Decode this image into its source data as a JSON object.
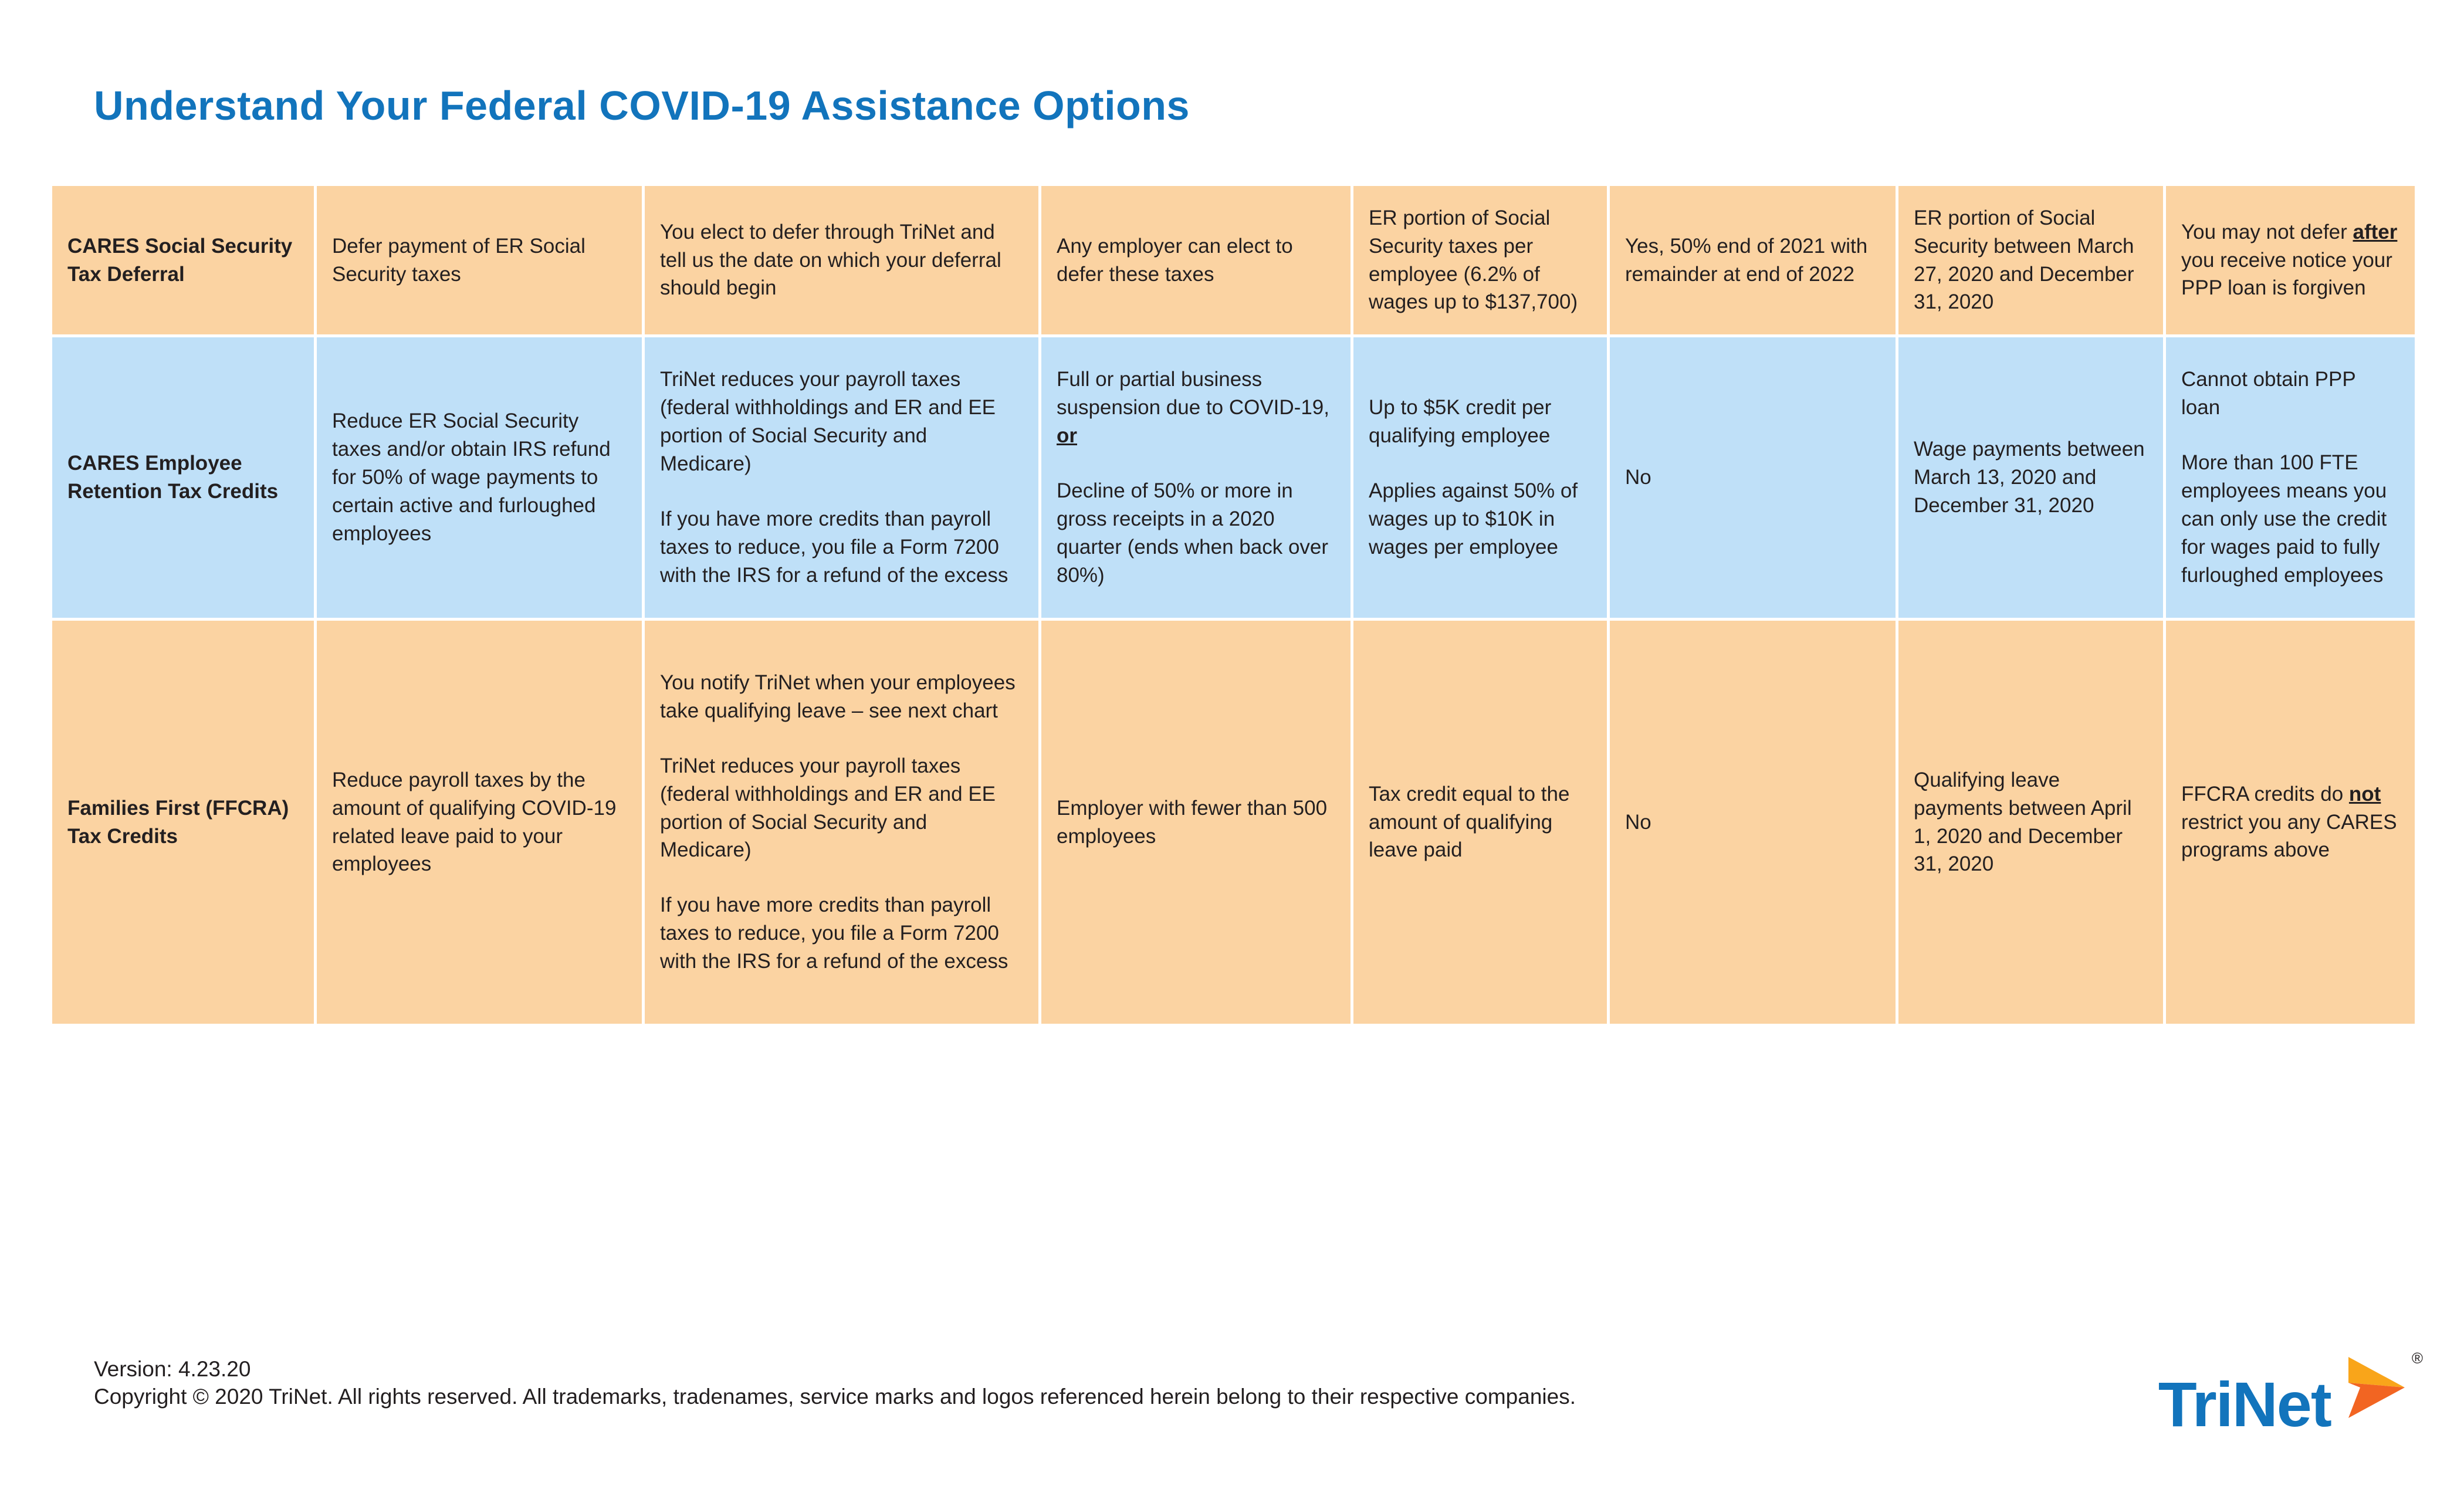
{
  "title": "Understand Your Federal COVID-19 Assistance Options",
  "colors": {
    "title_blue": "#1274bc",
    "row_orange": "#fbd3a2",
    "row_blue": "#bfe0f8",
    "logo_blue": "#1274bc",
    "logo_orange_light": "#f9a51a",
    "logo_orange_dark": "#f26522"
  },
  "table": {
    "rows": [
      {
        "header": "CARES Social Security Tax Deferral",
        "cells": [
          [
            [
              {
                "t": "Defer payment of ER Social Security taxes"
              }
            ]
          ],
          [
            [
              {
                "t": "You elect to defer through TriNet and tell us the date on which your deferral should begin"
              }
            ]
          ],
          [
            [
              {
                "t": "Any employer can elect to defer these taxes"
              }
            ]
          ],
          [
            [
              {
                "t": "ER portion of Social Security taxes per employee (6.2% of wages up to $137,700)"
              }
            ]
          ],
          [
            [
              {
                "t": "Yes, 50% end of 2021 with remainder at end of 2022"
              }
            ]
          ],
          [
            [
              {
                "t": "ER portion of Social Security between March 27, 2020 and December 31, 2020"
              }
            ]
          ],
          [
            [
              {
                "t": "You may not defer "
              },
              {
                "t": "after",
                "b": true,
                "u": true
              },
              {
                "t": " you receive notice your PPP loan is forgiven"
              }
            ]
          ]
        ]
      },
      {
        "header": "CARES Employee Retention Tax Credits",
        "cells": [
          [
            [
              {
                "t": "Reduce ER Social Security taxes and/or obtain IRS refund for 50% of wage payments to certain active and furloughed employees"
              }
            ]
          ],
          [
            [
              {
                "t": "TriNet reduces your payroll taxes (federal withholdings and ER and EE portion of Social Security and Medicare)"
              }
            ],
            [
              {
                "t": "If you have more credits than payroll taxes to reduce, you file a Form 7200 with the IRS for a refund of the excess"
              }
            ]
          ],
          [
            [
              {
                "t": "Full or partial business suspension due to COVID-19, "
              },
              {
                "t": "or",
                "b": true,
                "u": true
              }
            ],
            [
              {
                "t": "Decline of 50% or more in gross receipts in a 2020 quarter (ends when back over 80%)"
              }
            ]
          ],
          [
            [
              {
                "t": "Up to $5K credit per qualifying employee"
              }
            ],
            [
              {
                "t": "Applies against 50% of wages up to $10K in wages per employee"
              }
            ]
          ],
          [
            [
              {
                "t": "No"
              }
            ]
          ],
          [
            [
              {
                "t": "Wage payments between March 13, 2020 and December 31, 2020"
              }
            ]
          ],
          [
            [
              {
                "t": "Cannot obtain PPP loan"
              }
            ],
            [
              {
                "t": "More than 100 FTE employees means you can only use the credit for wages paid to fully furloughed employees"
              }
            ]
          ]
        ]
      },
      {
        "header": "Families First (FFCRA) Tax Credits",
        "cells": [
          [
            [
              {
                "t": "Reduce payroll taxes by the amount of qualifying COVID-19 related leave paid to your employees"
              }
            ]
          ],
          [
            [
              {
                "t": "You notify TriNet when your employees take qualifying leave – see next chart"
              }
            ],
            [
              {
                "t": "TriNet reduces your payroll taxes (federal withholdings and ER and EE portion of Social Security and Medicare)"
              }
            ],
            [
              {
                "t": "If you have more credits than payroll taxes to reduce, you file a Form 7200 with the IRS for a refund of the excess"
              }
            ]
          ],
          [
            [
              {
                "t": "Employer with fewer than 500 employees"
              }
            ]
          ],
          [
            [
              {
                "t": "Tax credit equal to the amount of qualifying leave paid"
              }
            ]
          ],
          [
            [
              {
                "t": "No"
              }
            ]
          ],
          [
            [
              {
                "t": "Qualifying leave payments between April 1, 2020 and December 31, 2020"
              }
            ]
          ],
          [
            [
              {
                "t": "FFCRA credits do "
              },
              {
                "t": "not",
                "b": true,
                "u": true
              },
              {
                "t": " restrict you any CARES programs above"
              }
            ]
          ]
        ]
      }
    ]
  },
  "footer": {
    "version": "Version: 4.23.20",
    "copyright": "Copyright © 2020 TriNet. All rights reserved. All trademarks, tradenames, service marks and logos referenced herein belong to their respective companies.",
    "logo_text": "TriNet",
    "logo_reg": "®"
  }
}
